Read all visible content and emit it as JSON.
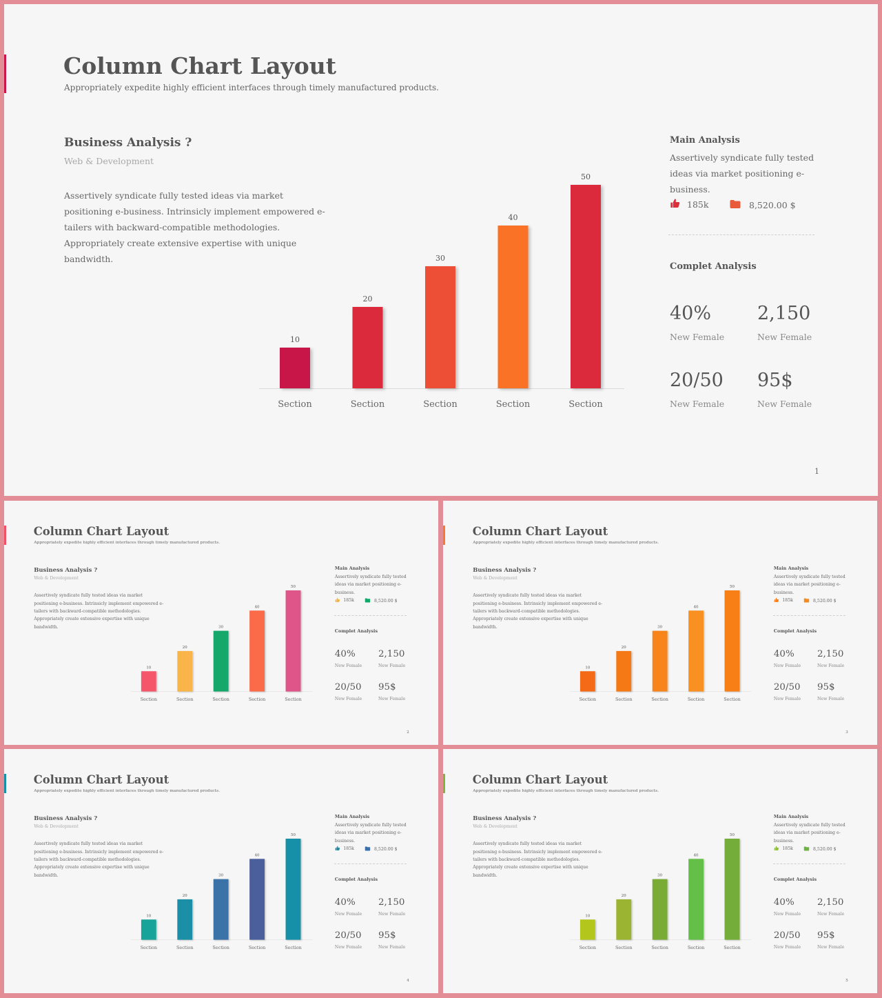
{
  "slides": [
    {
      "title": "Column Chart Layout",
      "subtitle": "Appropriately expedite highly efficient interfaces through timely manufactured products.",
      "business": {
        "heading": "Business Analysis ?",
        "meta": "Web & Development",
        "text": "Assertively syndicate fully tested ideas via market positioning e-business. Intrinsicly implement empowered e-tailers with backward-compatible methodologies. Appropriately create extensive expertise with unique bandwidth."
      },
      "main_analysis": {
        "heading": "Main Analysis",
        "text": "Assertively syndicate fully tested ideas via market positioning e-business.",
        "likes": "185k",
        "amount": "8,520.00 $"
      },
      "complete_analysis": {
        "heading": "Complet Analysis",
        "stats": [
          {
            "value": "40%",
            "label": "New Female"
          },
          {
            "value": "2,150",
            "label": "New Female"
          },
          {
            "value": "20/50",
            "label": "New Female"
          },
          {
            "value": "95$",
            "label": "New Female"
          }
        ]
      },
      "page_number": "1",
      "colors": {
        "accent": "#c8174a",
        "icon_like": "#dc2f3c",
        "icon_folder": "#e85a3a",
        "bars": [
          "#c8174a",
          "#dc2b3c",
          "#ec4f35",
          "#f97225",
          "#dc2b3c"
        ]
      },
      "icons": {
        "like": "thumbs-up-icon",
        "amount": "folder-icon"
      },
      "chart_data": {
        "type": "bar",
        "categories": [
          "Section",
          "Section",
          "Section",
          "Section",
          "Section"
        ],
        "values": [
          10,
          20,
          30,
          40,
          50
        ],
        "ylim": [
          0,
          50
        ],
        "data_labels": [
          "10",
          "20",
          "30",
          "40",
          "50"
        ],
        "grid": false
      }
    },
    {
      "title": "Column Chart Layout",
      "subtitle": "Appropriately expedite highly efficient interfaces through timely manufactured products.",
      "business": {
        "heading": "Business Analysis ?",
        "meta": "Web & Development",
        "text": "Assertively syndicate fully tested ideas via market positioning e-business. Intrinsicly implement empowered e-tailers with backward-compatible methodologies. Appropriately create extensive expertise with unique bandwidth."
      },
      "main_analysis": {
        "heading": "Main Analysis",
        "text": "Assertively syndicate fully tested ideas via market positioning e-business.",
        "likes": "185k",
        "amount": "8,520.00 $"
      },
      "complete_analysis": {
        "heading": "Complet Analysis",
        "stats": [
          {
            "value": "40%",
            "label": "New Female"
          },
          {
            "value": "2,150",
            "label": "New Female"
          },
          {
            "value": "20/50",
            "label": "New Female"
          },
          {
            "value": "95$",
            "label": "New Female"
          }
        ]
      },
      "page_number": "2",
      "colors": {
        "accent": "#f25066",
        "icon_like": "#f7b446",
        "icon_folder": "#12a968",
        "bars": [
          "#f5566a",
          "#f9b54a",
          "#13a86a",
          "#fb6a4a",
          "#e05589"
        ]
      },
      "icons": {
        "like": "thumbs-up-icon",
        "amount": "folder-icon"
      },
      "chart_data": {
        "type": "bar",
        "categories": [
          "Section",
          "Section",
          "Section",
          "Section",
          "Section"
        ],
        "values": [
          10,
          20,
          30,
          40,
          50
        ],
        "ylim": [
          0,
          50
        ],
        "data_labels": [
          "10",
          "20",
          "30",
          "40",
          "50"
        ],
        "grid": false
      }
    },
    {
      "title": "Column Chart Layout",
      "subtitle": "Appropriately expedite highly efficient interfaces through timely manufactured products.",
      "business": {
        "heading": "Business Analysis ?",
        "meta": "Web & Development",
        "text": "Assertively syndicate fully tested ideas via market positioning e-business. Intrinsicly implement empowered e-tailers with backward-compatible methodologies. Appropriately create extensive expertise with unique bandwidth."
      },
      "main_analysis": {
        "heading": "Main Analysis",
        "text": "Assertively syndicate fully tested ideas via market positioning e-business.",
        "likes": "185k",
        "amount": "8,520.00 $"
      },
      "complete_analysis": {
        "heading": "Complet Analysis",
        "stats": [
          {
            "value": "40%",
            "label": "New Female"
          },
          {
            "value": "2,150",
            "label": "New Female"
          },
          {
            "value": "20/50",
            "label": "New Female"
          },
          {
            "value": "95$",
            "label": "New Female"
          }
        ]
      },
      "page_number": "3",
      "colors": {
        "accent": "#f57a30",
        "icon_like": "#f77f1a",
        "icon_folder": "#f58a1f",
        "bars": [
          "#f56a12",
          "#f57a14",
          "#f7851a",
          "#f89020",
          "#f77f12"
        ]
      },
      "icons": {
        "like": "thumbs-up-icon",
        "amount": "folder-icon"
      },
      "chart_data": {
        "type": "bar",
        "categories": [
          "Section",
          "Section",
          "Section",
          "Section",
          "Section"
        ],
        "values": [
          10,
          20,
          30,
          40,
          50
        ],
        "ylim": [
          0,
          50
        ],
        "data_labels": [
          "10",
          "20",
          "30",
          "40",
          "50"
        ],
        "grid": false
      }
    },
    {
      "title": "Column Chart Layout",
      "subtitle": "Appropriately expedite highly efficient interfaces through timely manufactured products.",
      "business": {
        "heading": "Business Analysis ?",
        "meta": "Web & Development",
        "text": "Assertively syndicate fully tested ideas via market positioning e-business. Intrinsicly implement empowered e-tailers with backward-compatible methodologies. Appropriately create extensive expertise with unique bandwidth."
      },
      "main_analysis": {
        "heading": "Main Analysis",
        "text": "Assertively syndicate fully tested ideas via market positioning e-business.",
        "likes": "185k",
        "amount": "8,520.00 $"
      },
      "complete_analysis": {
        "heading": "Complet Analysis",
        "stats": [
          {
            "value": "40%",
            "label": "New Female"
          },
          {
            "value": "2,150",
            "label": "New Female"
          },
          {
            "value": "20/50",
            "label": "New Female"
          },
          {
            "value": "95$",
            "label": "New Female"
          }
        ]
      },
      "page_number": "4",
      "colors": {
        "accent": "#1790a8",
        "icon_like": "#1f8aa6",
        "icon_folder": "#3b6fa8",
        "bars": [
          "#14a39a",
          "#1a8fa8",
          "#3a72a8",
          "#4c5f9d",
          "#1790a8"
        ]
      },
      "icons": {
        "like": "thumbs-up-icon",
        "amount": "folder-icon"
      },
      "chart_data": {
        "type": "bar",
        "categories": [
          "Section",
          "Section",
          "Section",
          "Section",
          "Section"
        ],
        "values": [
          10,
          20,
          30,
          40,
          50
        ],
        "ylim": [
          0,
          50
        ],
        "data_labels": [
          "10",
          "20",
          "30",
          "40",
          "50"
        ],
        "grid": false
      }
    },
    {
      "title": "Column Chart Layout",
      "subtitle": "Appropriately expedite highly efficient interfaces through timely manufactured products.",
      "business": {
        "heading": "Business Analysis ?",
        "meta": "Web & Development",
        "text": "Assertively syndicate fully tested ideas via market positioning e-business. Intrinsicly implement empowered e-tailers with backward-compatible methodologies. Appropriately create extensive expertise with unique bandwidth."
      },
      "main_analysis": {
        "heading": "Main Analysis",
        "text": "Assertively syndicate fully tested ideas via market positioning e-business.",
        "likes": "185k",
        "amount": "8,520.00 $"
      },
      "complete_analysis": {
        "heading": "Complet Analysis",
        "stats": [
          {
            "value": "40%",
            "label": "New Female"
          },
          {
            "value": "2,150",
            "label": "New Female"
          },
          {
            "value": "20/50",
            "label": "New Female"
          },
          {
            "value": "95$",
            "label": "New Female"
          }
        ]
      },
      "page_number": "5",
      "colors": {
        "accent": "#7fb53a",
        "icon_like": "#8fbf3a",
        "icon_folder": "#6db33f",
        "bars": [
          "#b2c61e",
          "#9bb531",
          "#7aab36",
          "#63bf46",
          "#74ad3a"
        ]
      },
      "icons": {
        "like": "thumbs-up-icon",
        "amount": "folder-icon"
      },
      "chart_data": {
        "type": "bar",
        "categories": [
          "Section",
          "Section",
          "Section",
          "Section",
          "Section"
        ],
        "values": [
          10,
          20,
          30,
          40,
          50
        ],
        "ylim": [
          0,
          50
        ],
        "data_labels": [
          "10",
          "20",
          "30",
          "40",
          "50"
        ],
        "grid": false
      }
    }
  ]
}
